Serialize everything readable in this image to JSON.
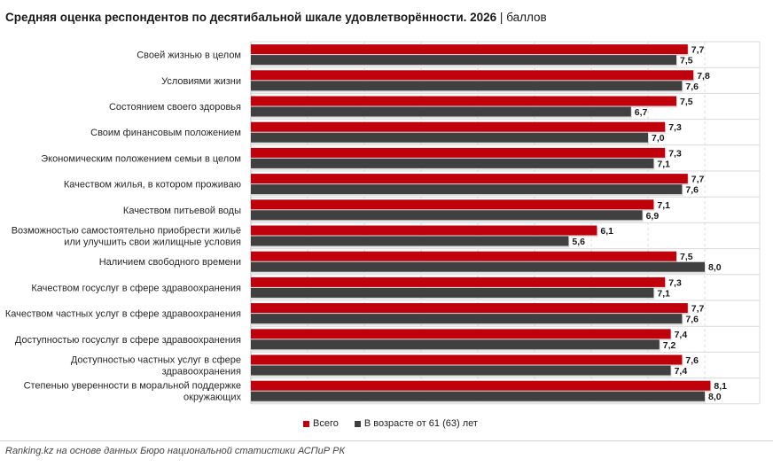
{
  "header": {
    "title": "Средняя оценка респондентов по десятибальной шкале удовлетворённости. 2026",
    "separator": "|",
    "unit": "баллов"
  },
  "chart_data": {
    "type": "bar",
    "orientation": "horizontal",
    "xlim": [
      0,
      9
    ],
    "grid": true,
    "legend_position": "bottom",
    "categories": [
      [
        "Своей жизнью в целом"
      ],
      [
        "Условиями жизни"
      ],
      [
        "Состоянием своего здоровья"
      ],
      [
        "Своим финансовым положением"
      ],
      [
        "Экономическим положением семьи в целом"
      ],
      [
        "Качеством жилья, в котором проживаю"
      ],
      [
        "Качеством питьевой воды"
      ],
      [
        "Возможностью самостоятельно приобрести жильё",
        "или улучшить свои жилищные условия"
      ],
      [
        "Наличием свободного времени"
      ],
      [
        "Качеством госуслуг в сфере здравоохранения"
      ],
      [
        "Качеством частных услуг в сфере здравоохранения"
      ],
      [
        "Доступностью госуслуг в сфере здравоохранения"
      ],
      [
        "Доступностью частных услуг в сфере",
        "здравоохранения"
      ],
      [
        "Степенью уверенности в моральной поддержке",
        "окружающих"
      ]
    ],
    "series": [
      {
        "name": "Всего",
        "color": "#c0000b",
        "values": [
          7.7,
          7.8,
          7.5,
          7.3,
          7.3,
          7.7,
          7.1,
          6.1,
          7.5,
          7.3,
          7.7,
          7.4,
          7.6,
          8.1
        ],
        "labels": [
          "7,7",
          "7,8",
          "7,5",
          "7,3",
          "7,3",
          "7,7",
          "7,1",
          "6,1",
          "7,5",
          "7,3",
          "7,7",
          "7,4",
          "7,6",
          "8,1"
        ]
      },
      {
        "name": "В возрасте от 61 (63) лет",
        "color": "#404040",
        "values": [
          7.5,
          7.6,
          6.7,
          7.0,
          7.1,
          7.6,
          6.9,
          5.6,
          8.0,
          7.1,
          7.6,
          7.2,
          7.4,
          8.0
        ],
        "labels": [
          "7,5",
          "7,6",
          "6,7",
          "7,0",
          "7,1",
          "7,6",
          "6,9",
          "5,6",
          "8,0",
          "7,1",
          "7,6",
          "7,2",
          "7,4",
          "8,0"
        ]
      }
    ]
  },
  "footer": {
    "source": "Ranking.kz на основе данных Бюро национальной статистики АСПиР РК"
  }
}
